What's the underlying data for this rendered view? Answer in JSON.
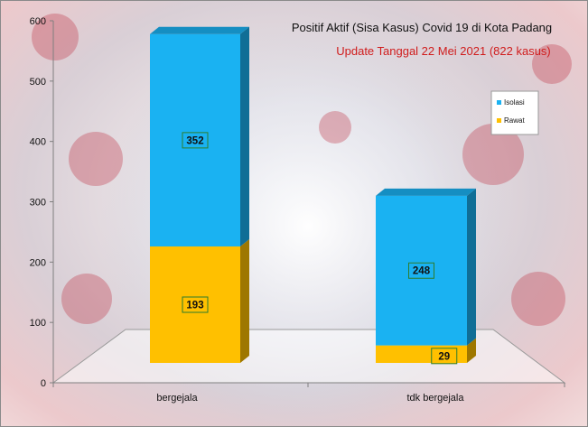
{
  "chart_data": {
    "type": "bar",
    "stacked": true,
    "title": "Positif Aktif  (Sisa Kasus) Covid 19 di Kota Padang",
    "subtitle": "Update Tanggal  22 Mei 2021  (822 kasus)",
    "categories": [
      "bergejala",
      "tdk bergejala"
    ],
    "series": [
      {
        "name": "Rawat",
        "values": [
          193,
          29
        ],
        "color": "#ffc000"
      },
      {
        "name": "Isolasi",
        "values": [
          352,
          248
        ],
        "color": "#1ab2f2"
      }
    ],
    "ylim": [
      0,
      600
    ],
    "yticks": [
      "0",
      "100",
      "200",
      "300",
      "400",
      "500",
      "600"
    ],
    "grid": false,
    "legend": "right",
    "three_d": true
  }
}
